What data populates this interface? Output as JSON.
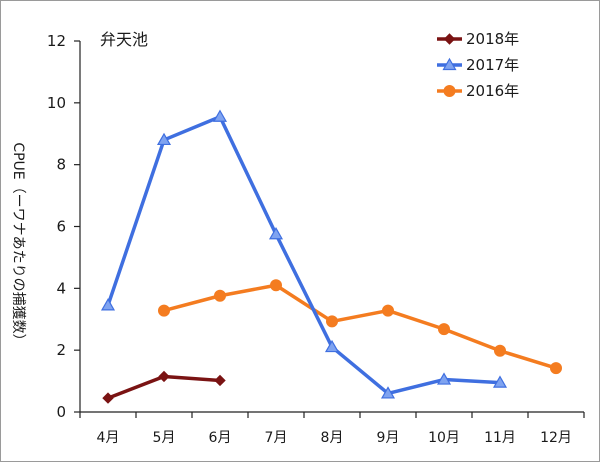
{
  "chart_data": {
    "type": "line",
    "title": "弁天池",
    "ylabel": "CPUE（ーワナあたりの捕獲数）",
    "xlabel": "",
    "categories": [
      "4月",
      "5月",
      "6月",
      "7月",
      "8月",
      "9月",
      "10月",
      "11月",
      "12月"
    ],
    "ylim": [
      0,
      12
    ],
    "yticks": [
      0,
      2,
      4,
      6,
      8,
      10,
      12
    ],
    "grid": false,
    "legend_position": "top-right",
    "series": [
      {
        "name": "2018年",
        "color": "#7a1313",
        "marker": "diamond",
        "values": [
          0.45,
          1.15,
          1.02,
          null,
          null,
          null,
          null,
          null,
          null
        ]
      },
      {
        "name": "2017年",
        "color": "#3f6fe0",
        "marker": "triangle",
        "values": [
          3.45,
          8.8,
          9.55,
          5.75,
          2.1,
          0.6,
          1.05,
          0.95,
          null
        ]
      },
      {
        "name": "2016年",
        "color": "#f47c20",
        "marker": "circle",
        "values": [
          null,
          3.28,
          3.76,
          4.1,
          2.93,
          3.28,
          2.68,
          1.98,
          1.42
        ]
      }
    ]
  }
}
